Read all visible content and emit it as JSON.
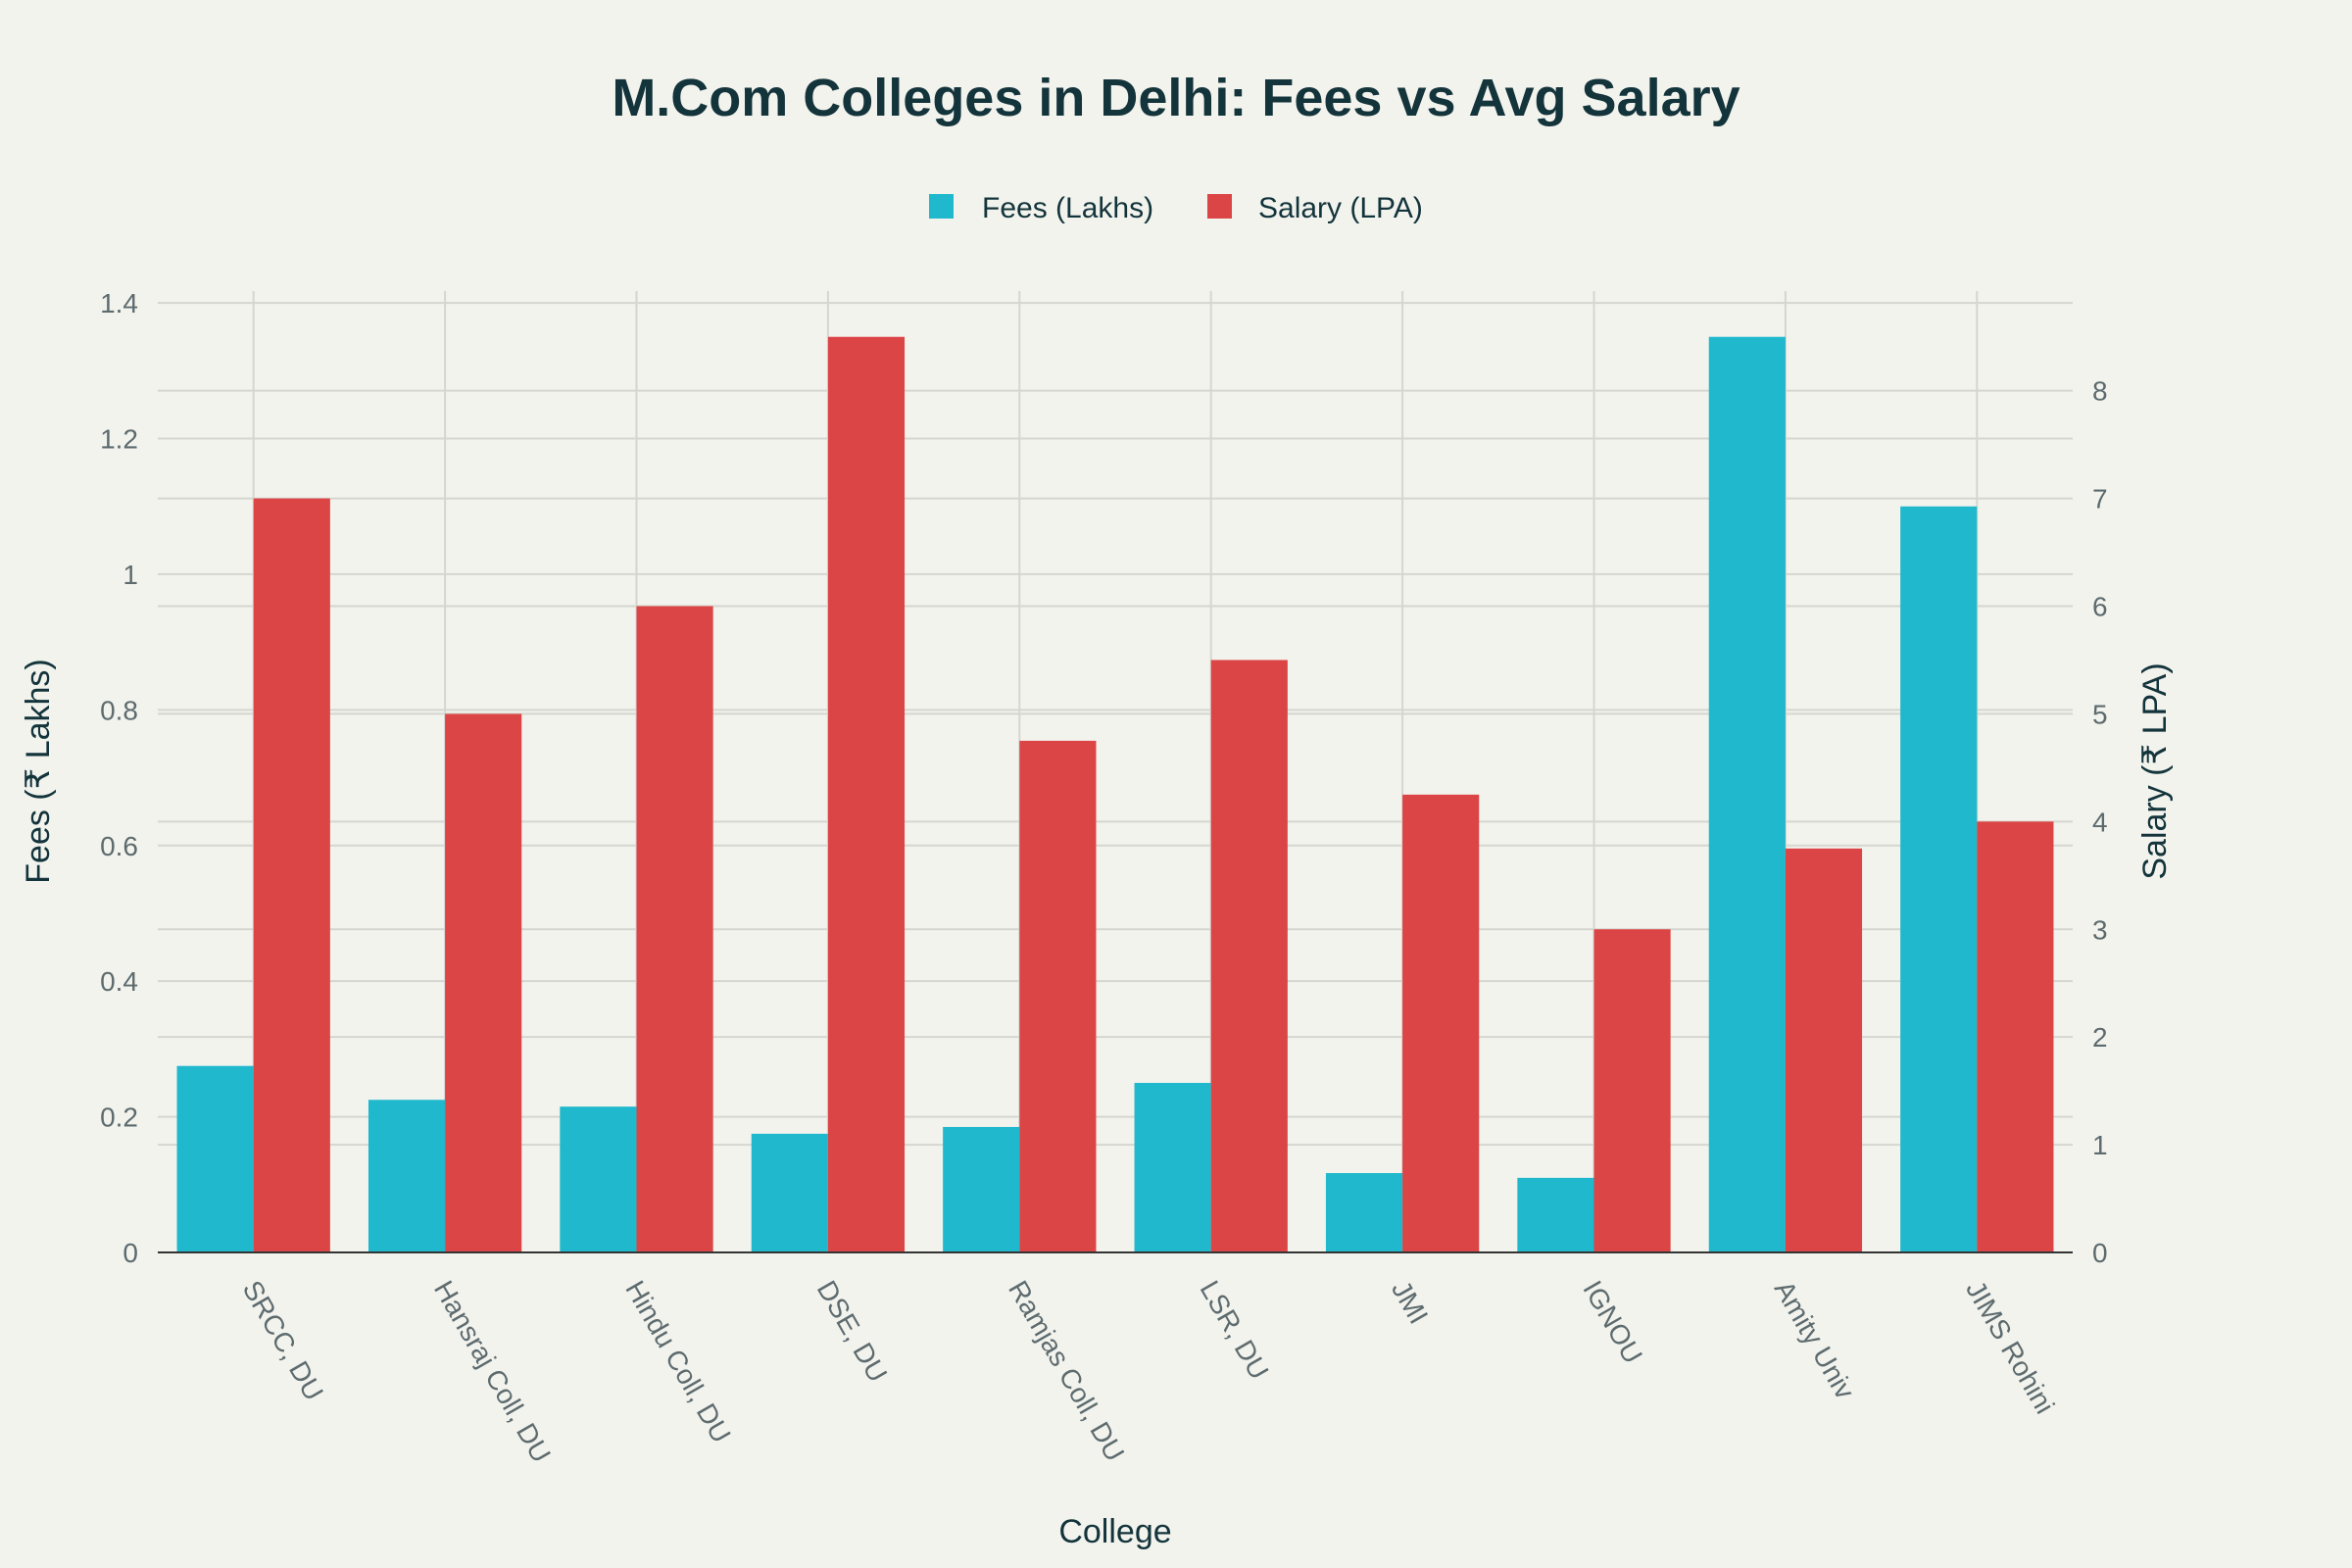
{
  "chart_data": {
    "type": "bar",
    "title": "M.Com Colleges in Delhi: Fees vs Avg Salary",
    "xlabel": "College",
    "ylabel": "Fees (₹ Lakhs)",
    "y2label": "Salary (₹ LPA)",
    "categories": [
      "SRCC, DU",
      "Hansraj Coll, DU",
      "Hindu Coll, DU",
      "DSE, DU",
      "Ramjas Coll, DU",
      "LSR, DU",
      "JMI",
      "IGNOU",
      "Amity Univ",
      "JIMS Rohini"
    ],
    "series": [
      {
        "name": "Fees (Lakhs)",
        "axis": "left",
        "color": "#1FB8CD",
        "values": [
          0.275,
          0.225,
          0.215,
          0.175,
          0.185,
          0.25,
          0.117,
          0.11,
          1.35,
          1.1
        ]
      },
      {
        "name": "Salary (LPA)",
        "axis": "right",
        "color": "#DB4545",
        "values": [
          7,
          5,
          6,
          8.5,
          4.75,
          5.5,
          4.25,
          3,
          3.75,
          4
        ]
      }
    ],
    "ylim": [
      0,
      1.4175
    ],
    "y2lim": [
      0,
      8.925
    ],
    "yticks": [
      0,
      0.2,
      0.4,
      0.6,
      0.8,
      1,
      1.2,
      1.4
    ],
    "y2ticks": [
      0,
      1,
      2,
      3,
      4,
      5,
      6,
      7,
      8
    ],
    "grid": true,
    "legend": "top-center"
  }
}
